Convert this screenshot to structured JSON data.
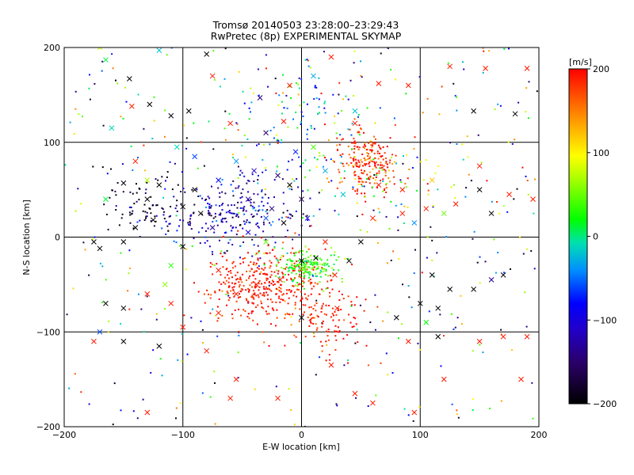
{
  "chart_data": {
    "type": "scatter",
    "title": "Tromsø 20140503 23:28:00–23:29:43",
    "subtitle": "RwPretec (8p) EXPERIMENTAL SKYMAP",
    "xlabel": "E-W location [km]",
    "ylabel": "N-S location [km]",
    "xlim": [
      -200,
      200
    ],
    "ylim": [
      -200,
      200
    ],
    "xticks": [
      -200,
      -100,
      0,
      100,
      200
    ],
    "yticks": [
      -200,
      -100,
      0,
      100,
      200
    ],
    "grid": true,
    "markers": [
      "dot",
      "x"
    ],
    "colorbar": {
      "label": "[m/s]",
      "min": -200,
      "max": 200,
      "ticks": [
        200,
        100,
        0,
        -100,
        -200
      ],
      "colormap": "rainbow-black-to-red"
    },
    "clusters": [
      {
        "x": -30,
        "y": -50,
        "sx": 25,
        "sy": 20,
        "n": 380,
        "v": 190,
        "sv": 15
      },
      {
        "x": 5,
        "y": -30,
        "sx": 13,
        "sy": 9,
        "n": 190,
        "v": 35,
        "sv": 25
      },
      {
        "x": 55,
        "y": 80,
        "sx": 12,
        "sy": 18,
        "n": 220,
        "v": 185,
        "sv": 30
      },
      {
        "x": -60,
        "y": 25,
        "sx": 35,
        "sy": 20,
        "n": 260,
        "v": -120,
        "sv": 45
      },
      {
        "x": -5,
        "y": 120,
        "sx": 30,
        "sy": 35,
        "n": 120,
        "v": -30,
        "sv": 60
      },
      {
        "x": -135,
        "y": 35,
        "sx": 20,
        "sy": 15,
        "n": 60,
        "v": -190,
        "sv": 15
      },
      {
        "x": 25,
        "y": -85,
        "sx": 15,
        "sy": 20,
        "n": 110,
        "v": 190,
        "sv": 15
      },
      {
        "x": 80,
        "y": 60,
        "sx": 40,
        "sy": 25,
        "n": 60,
        "v": 60,
        "sv": 60
      }
    ],
    "background_points": {
      "n": 420,
      "v_min": -200,
      "v_max": 200
    },
    "x_markers": [
      [
        -170,
        200,
        80
      ],
      [
        -165,
        187,
        10
      ],
      [
        -145,
        167,
        -200
      ],
      [
        -143,
        138,
        185
      ],
      [
        -128,
        140,
        -200
      ],
      [
        -120,
        197,
        -20
      ],
      [
        -110,
        128,
        -190
      ],
      [
        -80,
        193,
        -200
      ],
      [
        -75,
        170,
        190
      ],
      [
        -95,
        133,
        -200
      ],
      [
        -60,
        120,
        190
      ],
      [
        -35,
        147,
        -140
      ],
      [
        -30,
        110,
        -150
      ],
      [
        -15,
        122,
        190
      ],
      [
        -10,
        160,
        190
      ],
      [
        10,
        170,
        -30
      ],
      [
        25,
        190,
        190
      ],
      [
        45,
        133,
        -20
      ],
      [
        65,
        162,
        190
      ],
      [
        90,
        160,
        190
      ],
      [
        125,
        180,
        190
      ],
      [
        145,
        133,
        -200
      ],
      [
        155,
        178,
        190
      ],
      [
        190,
        178,
        190
      ],
      [
        180,
        130,
        -200
      ],
      [
        -160,
        115,
        -10
      ],
      [
        -140,
        80,
        190
      ],
      [
        -150,
        57,
        -200
      ],
      [
        -120,
        55,
        -200
      ],
      [
        -100,
        32,
        -200
      ],
      [
        -90,
        50,
        -200
      ],
      [
        -85,
        25,
        -200
      ],
      [
        -130,
        40,
        -200
      ],
      [
        -140,
        10,
        -200
      ],
      [
        -125,
        18,
        -200
      ],
      [
        -175,
        -5,
        -200
      ],
      [
        -170,
        -12,
        -200
      ],
      [
        -150,
        -5,
        -200
      ],
      [
        -100,
        -10,
        -200
      ],
      [
        -70,
        -35,
        190
      ],
      [
        -70,
        -80,
        190
      ],
      [
        -55,
        -60,
        190
      ],
      [
        -38,
        -50,
        190
      ],
      [
        -18,
        -45,
        190
      ],
      [
        0,
        -25,
        -200
      ],
      [
        12,
        -22,
        -200
      ],
      [
        28,
        -40,
        190
      ],
      [
        40,
        -25,
        -200
      ],
      [
        50,
        -5,
        -200
      ],
      [
        -30,
        -5,
        50
      ],
      [
        20,
        -5,
        190
      ],
      [
        65,
        55,
        190
      ],
      [
        85,
        50,
        190
      ],
      [
        105,
        30,
        190
      ],
      [
        130,
        35,
        190
      ],
      [
        150,
        50,
        -200
      ],
      [
        175,
        45,
        190
      ],
      [
        160,
        25,
        -200
      ],
      [
        195,
        40,
        190
      ],
      [
        120,
        25,
        50
      ],
      [
        110,
        -40,
        -200
      ],
      [
        125,
        -55,
        -200
      ],
      [
        145,
        -55,
        -200
      ],
      [
        160,
        -45,
        -130
      ],
      [
        170,
        -40,
        -200
      ],
      [
        115,
        -75,
        -200
      ],
      [
        100,
        -70,
        -200
      ],
      [
        105,
        -90,
        20
      ],
      [
        80,
        -85,
        -200
      ],
      [
        90,
        -110,
        190
      ],
      [
        115,
        -105,
        -200
      ],
      [
        150,
        -110,
        190
      ],
      [
        170,
        -105,
        190
      ],
      [
        190,
        -105,
        190
      ],
      [
        185,
        -150,
        190
      ],
      [
        -175,
        -110,
        190
      ],
      [
        -150,
        -110,
        -200
      ],
      [
        -165,
        -70,
        -200
      ],
      [
        -150,
        -75,
        -200
      ],
      [
        -130,
        -60,
        190
      ],
      [
        -120,
        -115,
        -200
      ],
      [
        -100,
        -95,
        190
      ],
      [
        -110,
        -70,
        190
      ],
      [
        -115,
        -50,
        60
      ],
      [
        -110,
        -30,
        30
      ],
      [
        -80,
        -120,
        190
      ],
      [
        -55,
        -150,
        190
      ],
      [
        -20,
        -170,
        190
      ],
      [
        25,
        -135,
        190
      ],
      [
        45,
        -165,
        190
      ],
      [
        60,
        -175,
        190
      ],
      [
        95,
        -185,
        190
      ],
      [
        120,
        -150,
        190
      ],
      [
        -60,
        -170,
        190
      ],
      [
        -130,
        -185,
        190
      ],
      [
        -20,
        65,
        -150
      ],
      [
        -45,
        40,
        -120
      ],
      [
        -30,
        20,
        -60
      ],
      [
        0,
        40,
        -160
      ],
      [
        -10,
        55,
        -200
      ],
      [
        -25,
        30,
        -140
      ],
      [
        5,
        20,
        -100
      ],
      [
        -40,
        70,
        -110
      ],
      [
        -70,
        60,
        -80
      ],
      [
        -55,
        80,
        -40
      ],
      [
        -90,
        85,
        -60
      ],
      [
        -105,
        95,
        -10
      ],
      [
        -130,
        60,
        70
      ],
      [
        35,
        45,
        -20
      ],
      [
        20,
        70,
        -30
      ],
      [
        10,
        95,
        40
      ],
      [
        45,
        120,
        190
      ],
      [
        -5,
        90,
        -70
      ],
      [
        -15,
        15,
        -200
      ],
      [
        -45,
        5,
        -100
      ],
      [
        -75,
        10,
        -130
      ],
      [
        60,
        20,
        190
      ],
      [
        85,
        25,
        190
      ],
      [
        95,
        15,
        -40
      ],
      [
        150,
        75,
        190
      ],
      [
        110,
        60,
        120
      ],
      [
        -170,
        -100,
        -60
      ],
      [
        -165,
        40,
        10
      ],
      [
        0,
        -85,
        -200
      ],
      [
        30,
        -75,
        190
      ]
    ],
    "seed": 20140503
  }
}
